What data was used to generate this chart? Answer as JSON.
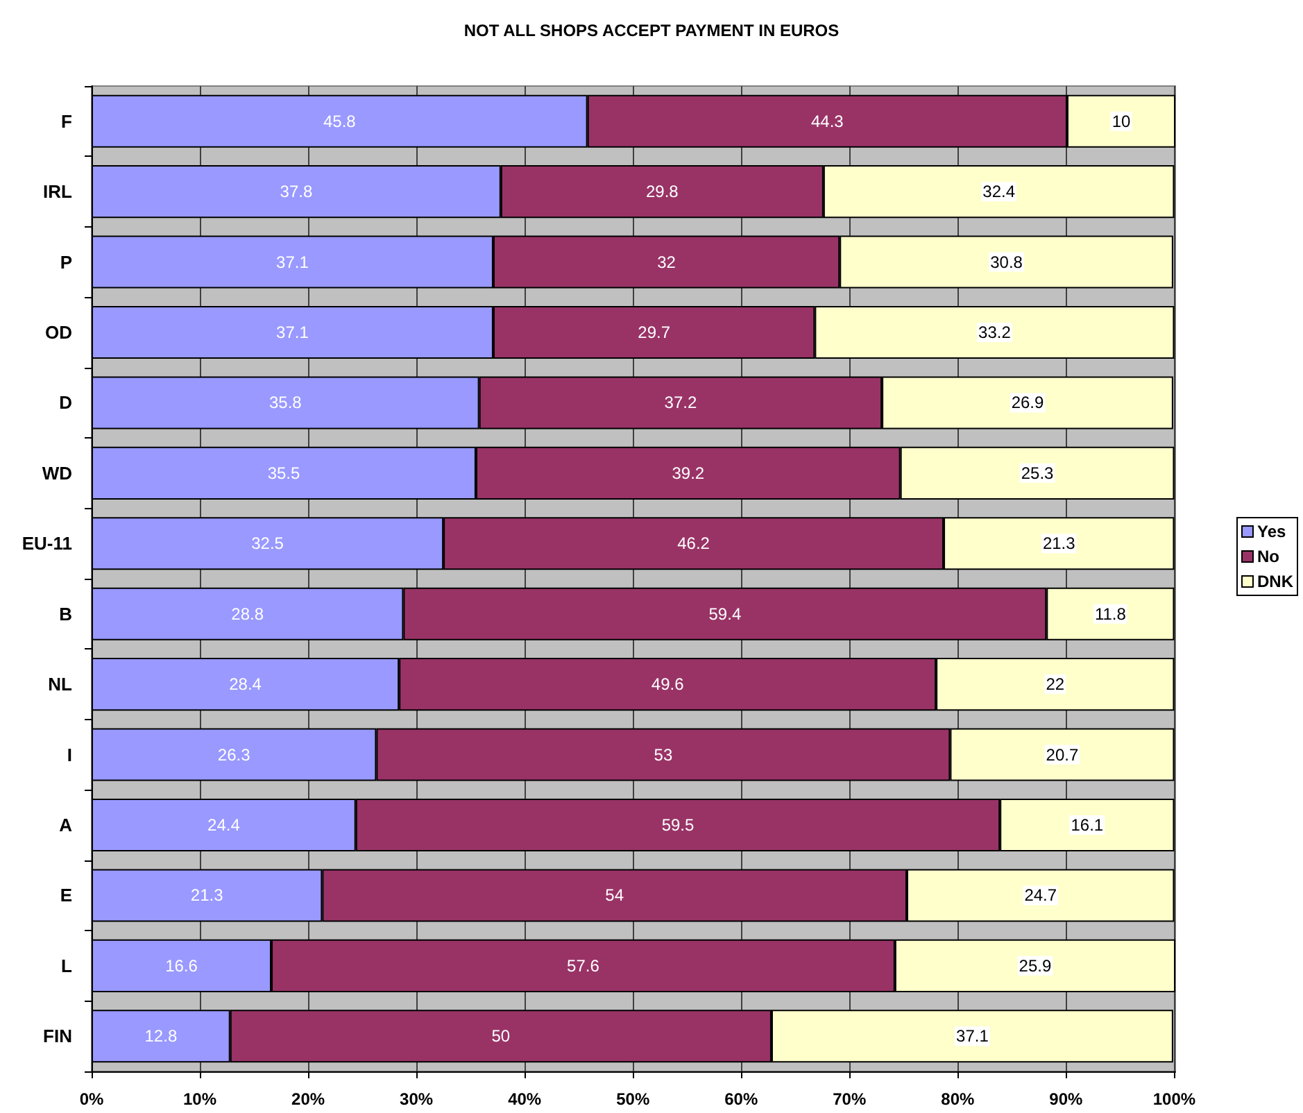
{
  "chart_data": {
    "type": "bar",
    "orientation": "horizontal",
    "stacked": true,
    "title": "NOT ALL SHOPS ACCEPT PAYMENT IN EUROS",
    "categories": [
      "F",
      "IRL",
      "P",
      "OD",
      "D",
      "WD",
      "EU-11",
      "B",
      "NL",
      "I",
      "A",
      "E",
      "L",
      "FIN"
    ],
    "series": [
      {
        "name": "Yes",
        "color": "#9999ff",
        "values": [
          45.8,
          37.8,
          37.1,
          37.1,
          35.8,
          35.5,
          32.5,
          28.8,
          28.4,
          26.3,
          24.4,
          21.3,
          16.6,
          12.8
        ]
      },
      {
        "name": "No",
        "color": "#993366",
        "values": [
          44.3,
          29.8,
          32,
          29.7,
          37.2,
          39.2,
          46.2,
          59.4,
          49.6,
          53,
          59.5,
          54,
          57.6,
          50
        ]
      },
      {
        "name": "DNK",
        "color": "#ffffcc",
        "values": [
          10,
          32.4,
          30.8,
          33.2,
          26.9,
          25.3,
          21.3,
          11.8,
          22,
          20.7,
          16.1,
          24.7,
          25.9,
          37.1
        ]
      }
    ],
    "xlim": [
      0,
      100.1
    ],
    "xticks": [
      {
        "value": 0,
        "label": "0%"
      },
      {
        "value": 10,
        "label": "10%"
      },
      {
        "value": 20,
        "label": "20%"
      },
      {
        "value": 30,
        "label": "30%"
      },
      {
        "value": 40,
        "label": "40%"
      },
      {
        "value": 50,
        "label": "50%"
      },
      {
        "value": 60,
        "label": "60%"
      },
      {
        "value": 70,
        "label": "70%"
      },
      {
        "value": 80,
        "label": "80%"
      },
      {
        "value": 90,
        "label": "90%"
      },
      {
        "value": 100,
        "label": "100%"
      }
    ],
    "grid": "x",
    "legend": "right",
    "data_labels": true
  }
}
